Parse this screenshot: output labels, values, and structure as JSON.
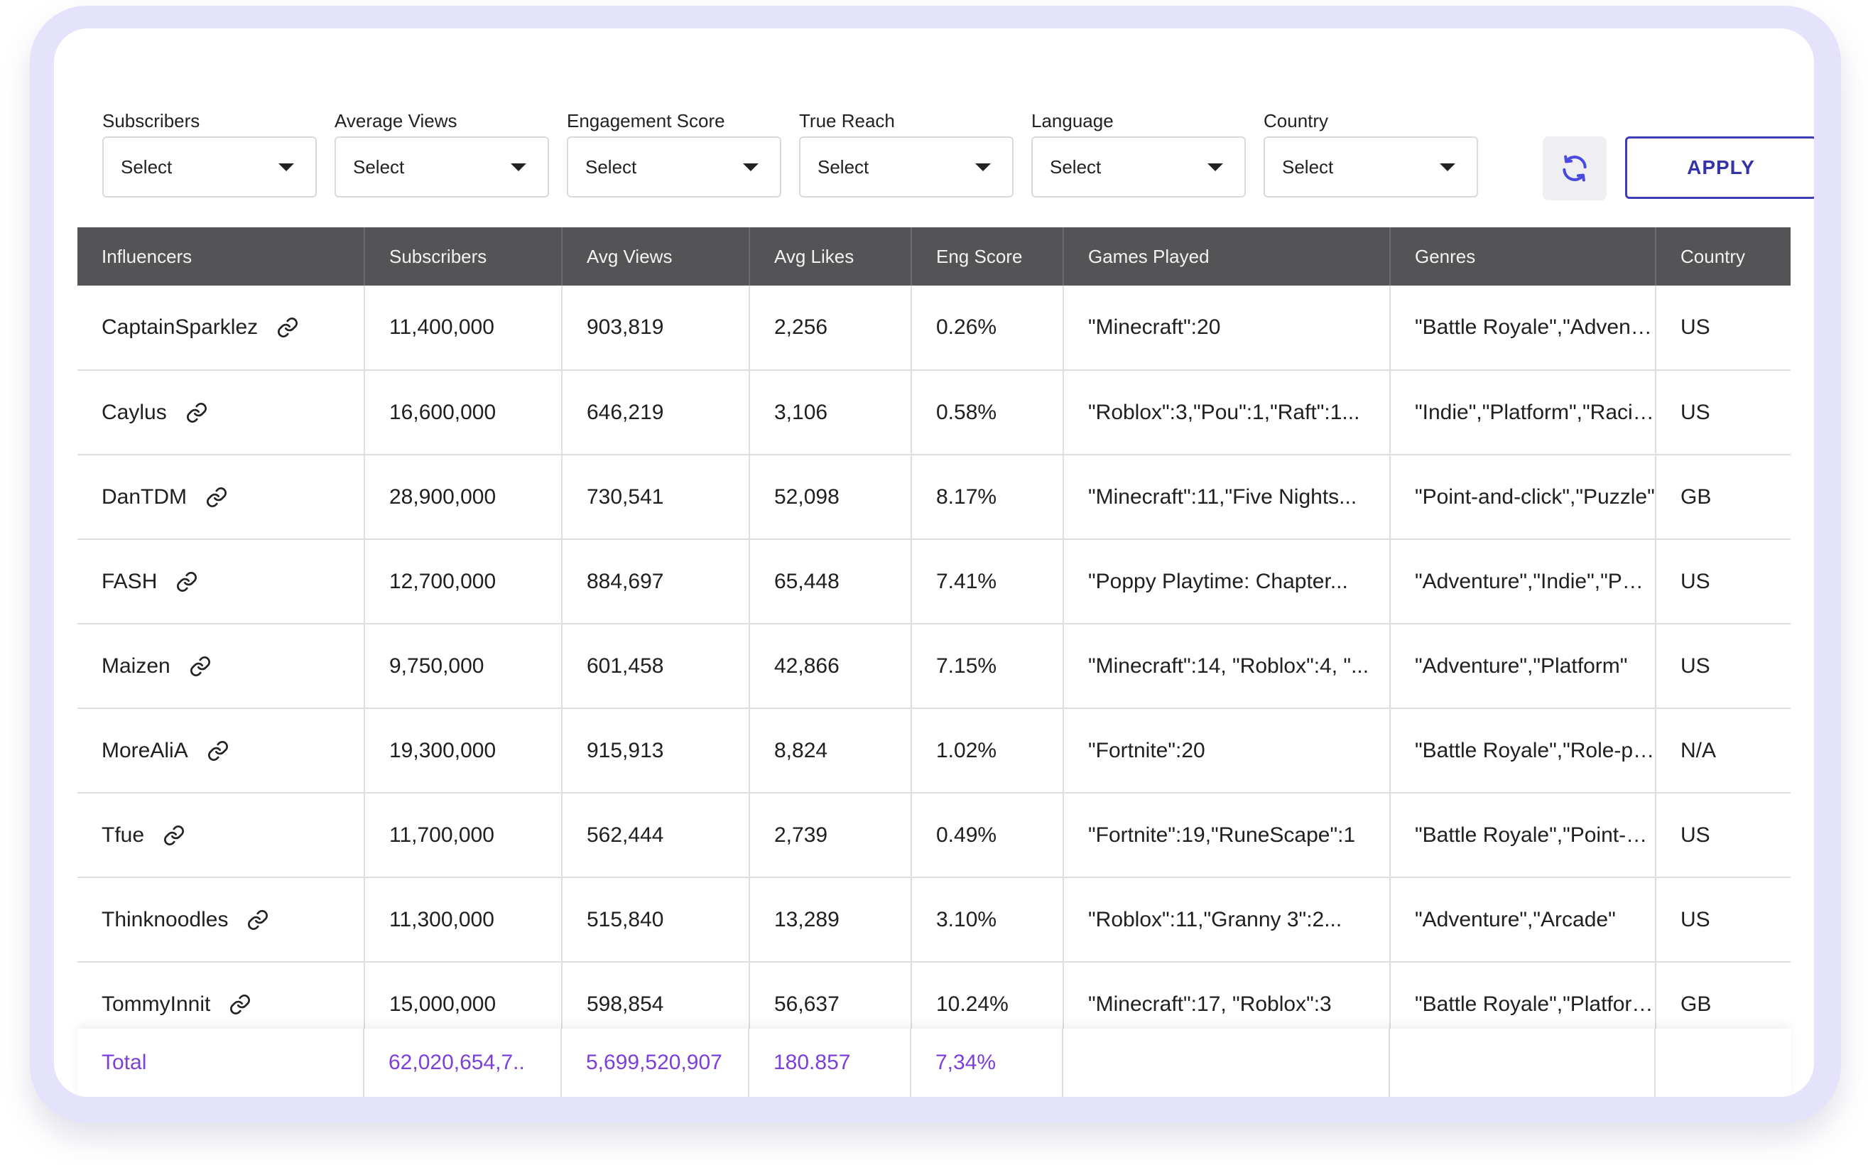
{
  "filters": [
    {
      "label": "Subscribers",
      "value": "Select"
    },
    {
      "label": "Average Views",
      "value": "Select"
    },
    {
      "label": "Engagement Score",
      "value": "Select"
    },
    {
      "label": "True Reach",
      "value": "Select"
    },
    {
      "label": "Language",
      "value": "Select"
    },
    {
      "label": "Country",
      "value": "Select"
    }
  ],
  "apply_label": "APPLY",
  "icons": {
    "refresh": "refresh-icon",
    "link": "link-icon",
    "caret": "chevron-down-icon"
  },
  "colors": {
    "header_bg": "#545456",
    "accent": "#3d3db8",
    "total_text": "#7d3fd9",
    "frame": "#e4e3fb"
  },
  "table": {
    "columns": [
      "Influencers",
      "Subscribers",
      "Avg Views",
      "Avg Likes",
      "Eng Score",
      "Games Played",
      "Genres",
      "Country"
    ],
    "rows": [
      [
        "CaptainSparklez",
        "11,400,000",
        "903,819",
        "2,256",
        "0.26%",
        "\"Minecraft\":20",
        "\"Battle Royale\",\"Adventure\"",
        "US"
      ],
      [
        "Caylus",
        "16,600,000",
        "646,219",
        "3,106",
        "0.58%",
        "\"Roblox\":3,\"Pou\":1,\"Raft\":1...",
        "\"Indie\",\"Platform\",\"Racing\"",
        "US"
      ],
      [
        "DanTDM",
        "28,900,000",
        "730,541",
        "52,098",
        "8.17%",
        "\"Minecraft\":11,\"Five Nights...",
        "\"Point-and-click\",\"Puzzle\"",
        "GB"
      ],
      [
        "FASH",
        "12,700,000",
        "884,697",
        "65,448",
        "7.41%",
        "\"Poppy Playtime: Chapter...",
        "\"Adventure\",\"Indie\",\"Puzzle\"",
        "US"
      ],
      [
        "Maizen",
        "9,750,000",
        "601,458",
        "42,866",
        "7.15%",
        "\"Minecraft\":14, \"Roblox\":4, \"...",
        "\"Adventure\",\"Platform\"",
        "US"
      ],
      [
        "MoreAliA",
        "19,300,000",
        "915,913",
        "8,824",
        "1.02%",
        "\"Fortnite\":20",
        "\"Battle Royale\",\"Role-playing\"",
        "N/A"
      ],
      [
        "Tfue",
        "11,700,000",
        "562,444",
        "2,739",
        "0.49%",
        "\"Fortnite\":19,\"RuneScape\":1",
        "\"Battle Royale\",\"Point-and-click\"",
        "US"
      ],
      [
        "Thinknoodles",
        "11,300,000",
        "515,840",
        "13,289",
        "3.10%",
        "\"Roblox\":11,\"Granny 3\":2...",
        "\"Adventure\",\"Arcade\"",
        "US"
      ],
      [
        "TommyInnit",
        "15,000,000",
        "598,854",
        "56,637",
        "10.24%",
        "\"Minecraft\":17, \"Roblox\":3",
        "\"Battle Royale\",\"Platform\"",
        "GB"
      ]
    ],
    "total": {
      "label": "Total",
      "subscribers": "62,020,654,7..",
      "avg_views": "5,699,520,907",
      "avg_likes": "180.857",
      "eng_score": "7,34%"
    }
  }
}
